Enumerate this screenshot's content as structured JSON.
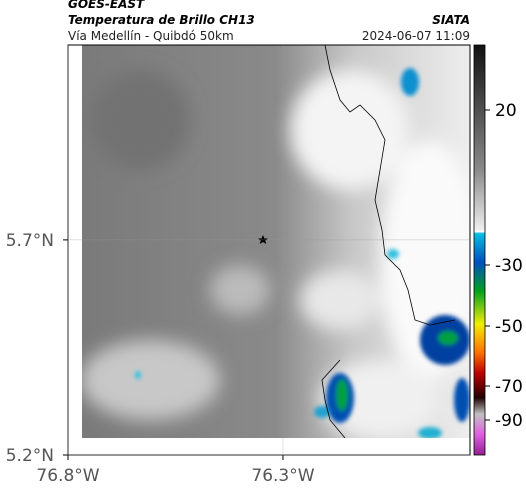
{
  "header": {
    "satellite": "GOES-EAST",
    "product": "Temperatura de Brillo CH13",
    "source": "SIATA",
    "route": "Vía Medellín - Quibdó 50km",
    "timestamp": "2024-06-07 11:09"
  },
  "map": {
    "xlim": [
      -76.8,
      -75.865
    ],
    "ylim": [
      5.2,
      6.153
    ],
    "xticks": [
      {
        "value": -76.8,
        "label": "76.8°W"
      },
      {
        "value": -76.3,
        "label": "76.3°W"
      }
    ],
    "yticks": [
      {
        "value": 5.7,
        "label": "5.7°N"
      },
      {
        "value": 5.2,
        "label": "5.2°N"
      }
    ]
  },
  "colorbar": {
    "ticks": [
      20,
      -30,
      -50,
      -70,
      -90
    ]
  }
}
